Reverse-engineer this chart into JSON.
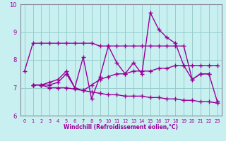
{
  "xlabel": "Windchill (Refroidissement éolien,°C)",
  "bg_color": "#c8f0f0",
  "line_color": "#990099",
  "grid_color": "#99cccc",
  "axis_color": "#888899",
  "xlim": [
    -0.5,
    23.5
  ],
  "ylim": [
    6,
    10
  ],
  "xticks": [
    0,
    1,
    2,
    3,
    4,
    5,
    6,
    7,
    8,
    9,
    10,
    11,
    12,
    13,
    14,
    15,
    16,
    17,
    18,
    19,
    20,
    21,
    22,
    23
  ],
  "yticks": [
    6,
    7,
    8,
    9,
    10
  ],
  "series": [
    {
      "x": [
        0,
        1,
        2,
        3,
        4,
        5,
        6,
        7,
        8,
        9,
        10,
        11,
        12,
        13,
        14,
        15,
        16,
        17,
        18,
        19,
        20,
        21,
        22,
        23
      ],
      "y": [
        7.6,
        8.6,
        8.6,
        8.6,
        8.6,
        8.6,
        8.6,
        8.6,
        8.6,
        8.5,
        8.5,
        8.5,
        8.5,
        8.5,
        8.5,
        8.5,
        8.5,
        8.5,
        8.5,
        8.5,
        7.3,
        7.5,
        7.5,
        6.5
      ]
    },
    {
      "x": [
        1,
        2,
        3,
        4,
        5,
        6,
        7,
        8,
        9,
        10,
        11,
        12,
        13,
        14,
        15,
        16,
        17,
        18,
        19,
        20,
        21,
        22
      ],
      "y": [
        7.1,
        7.1,
        7.2,
        7.3,
        7.6,
        7.0,
        8.1,
        6.6,
        7.4,
        8.5,
        7.9,
        7.5,
        7.9,
        7.5,
        9.7,
        9.1,
        8.8,
        8.6,
        7.8,
        7.3,
        7.5,
        7.5
      ]
    },
    {
      "x": [
        1,
        2,
        3,
        4,
        5,
        6,
        7,
        8,
        9,
        10,
        11,
        12,
        13,
        14,
        15,
        16,
        17,
        18,
        19,
        20,
        21,
        22,
        23
      ],
      "y": [
        7.1,
        7.1,
        7.1,
        7.2,
        7.5,
        7.0,
        6.9,
        7.1,
        7.3,
        7.4,
        7.5,
        7.5,
        7.6,
        7.6,
        7.6,
        7.7,
        7.7,
        7.8,
        7.8,
        7.8,
        7.8,
        7.8,
        7.8
      ]
    },
    {
      "x": [
        1,
        2,
        3,
        4,
        5,
        6,
        7,
        8,
        9,
        10,
        11,
        12,
        13,
        14,
        15,
        16,
        17,
        18,
        19,
        20,
        21,
        22,
        23
      ],
      "y": [
        7.1,
        7.1,
        7.0,
        7.0,
        7.0,
        6.95,
        6.9,
        6.85,
        6.8,
        6.75,
        6.75,
        6.7,
        6.7,
        6.7,
        6.65,
        6.65,
        6.6,
        6.6,
        6.55,
        6.55,
        6.5,
        6.5,
        6.45
      ]
    }
  ],
  "marker": "+",
  "markersize": 4,
  "linewidth": 1.0
}
